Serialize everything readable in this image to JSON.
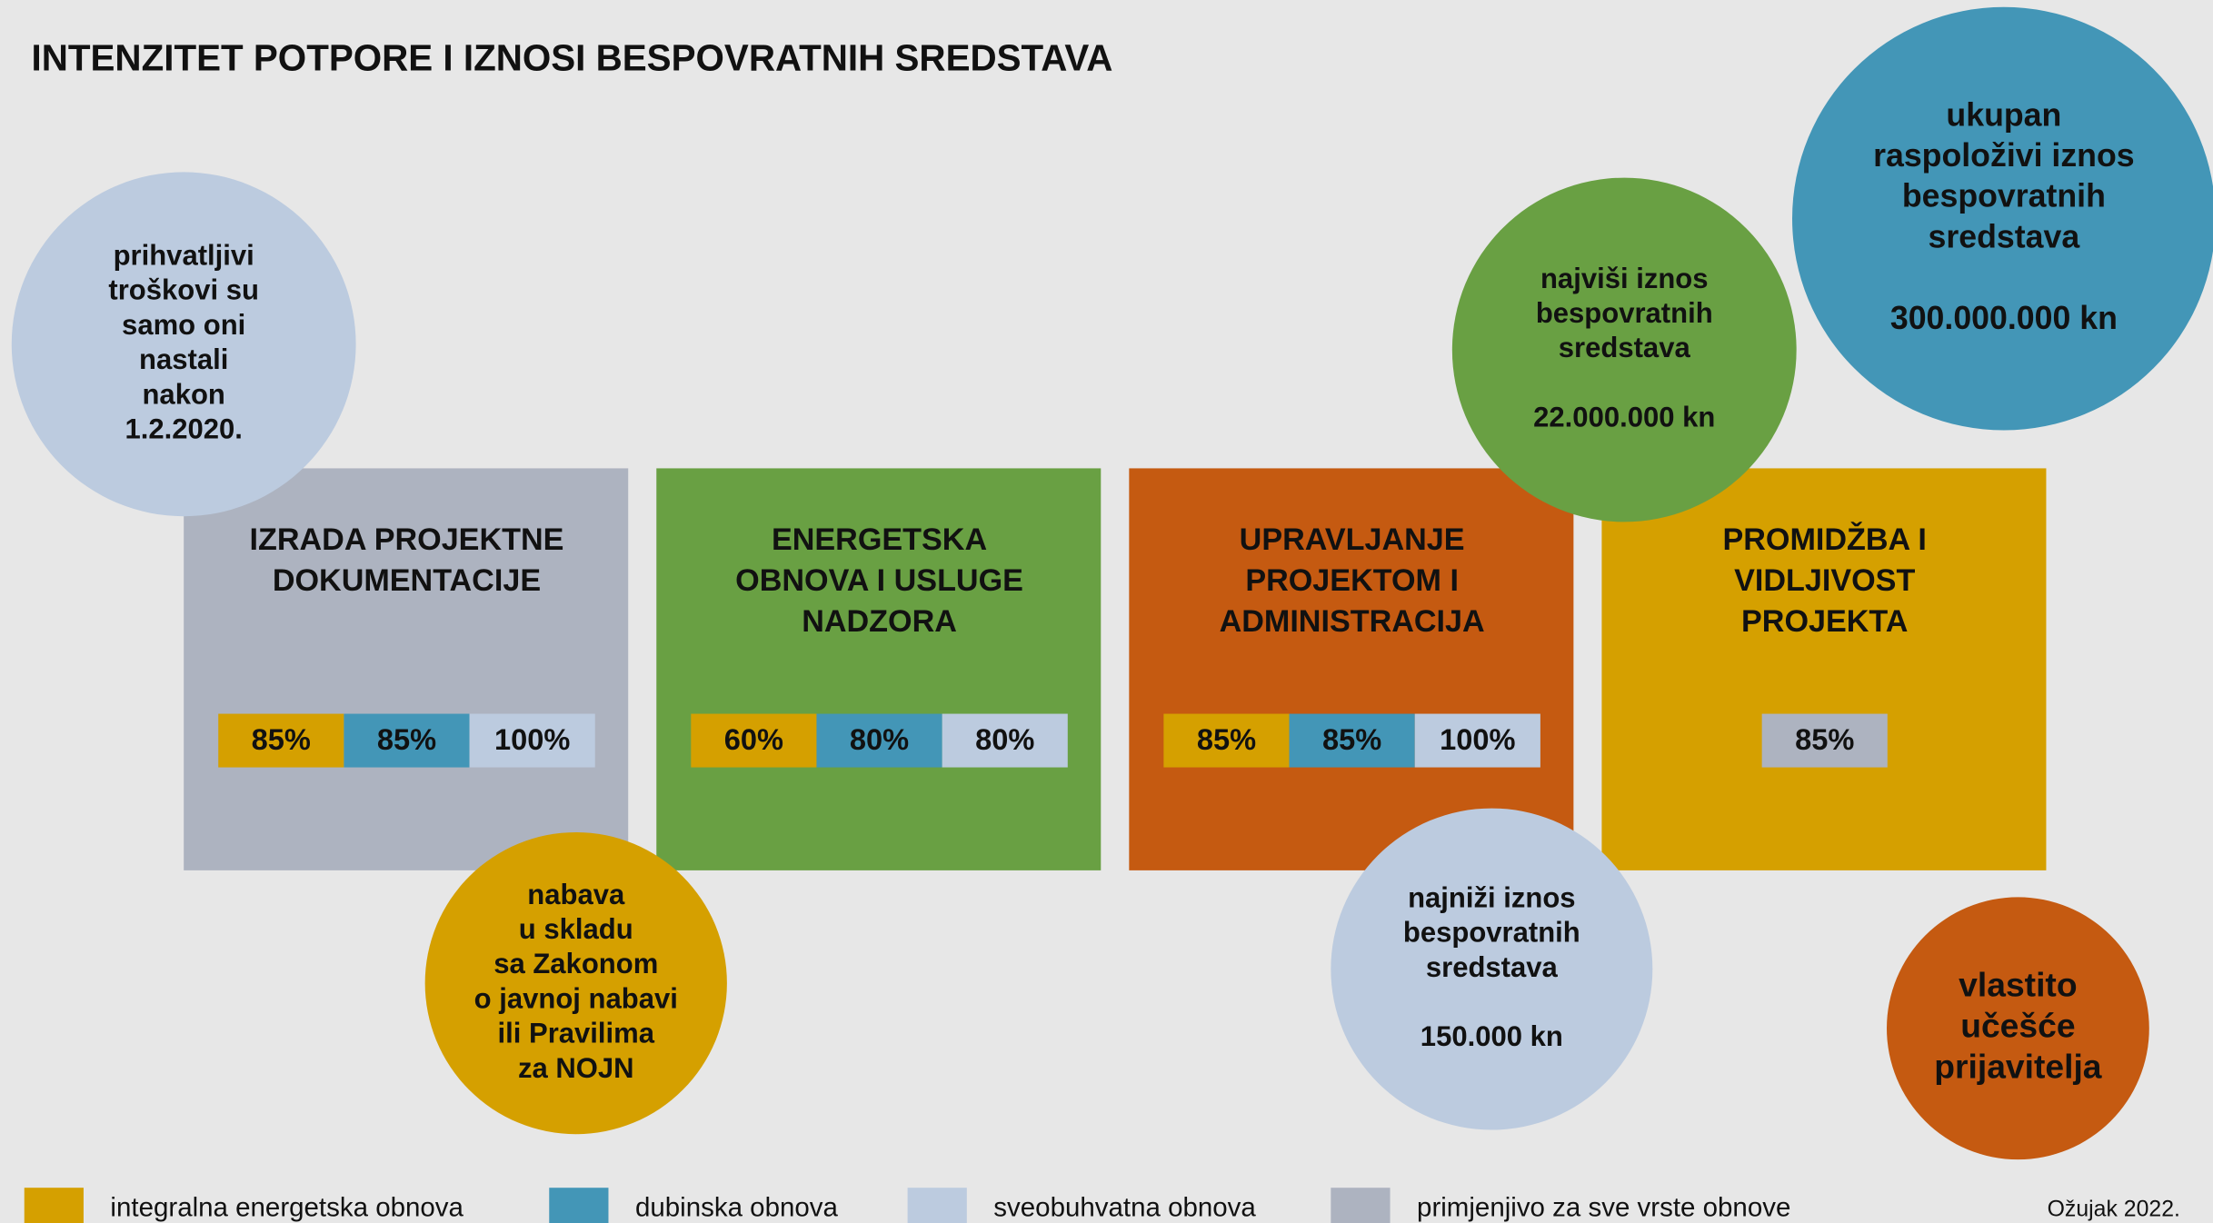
{
  "title": "INTENZITET POTPORE I IZNOSI BESPOVRATNIH SREDSTAVA",
  "boxes": [
    {
      "color": "#adb3c0",
      "x": 0,
      "title": [
        "IZRADA PROJEKTNE",
        "DOKUMENTACIJE"
      ],
      "cells": [
        {
          "label": "85%",
          "color": "#d5a000"
        },
        {
          "label": "85%",
          "color": "#4396b7"
        },
        {
          "label": "100%",
          "color": "#bccbdf"
        }
      ]
    },
    {
      "color": "#69a043",
      "title": [
        "ENERGETSKA",
        "OBNOVA I USLUGE",
        "NADZORA"
      ],
      "cells": [
        {
          "label": "60%",
          "color": "#d5a000"
        },
        {
          "label": "80%",
          "color": "#4396b7"
        },
        {
          "label": "80%",
          "color": "#bccbdf"
        }
      ]
    },
    {
      "color": "#c55a11",
      "title": [
        "UPRAVLJANJE",
        "PROJEKTOM I",
        "ADMINISTRACIJA"
      ],
      "cells": [
        {
          "label": "85%",
          "color": "#d5a000"
        },
        {
          "label": "85%",
          "color": "#4396b7"
        },
        {
          "label": "100%",
          "color": "#bccbdf"
        }
      ]
    },
    {
      "color": "#d5a000",
      "title": [
        "PROMIDŽBA I",
        "VIDLJIVOST",
        "PROJEKTA"
      ],
      "cells": [
        {
          "label": "85%",
          "color": "#adb3c0"
        }
      ]
    }
  ],
  "circles": [
    {
      "color": "#bccbdf",
      "lines": [
        "prihvatljivi",
        "troškovi su",
        "samo oni",
        "nastali",
        "nakon",
        "1.2.2020."
      ]
    },
    {
      "color": "#d5a000",
      "lines": [
        "nabava",
        "u skladu",
        "sa Zakonom",
        "o javnoj nabavi",
        "ili Pravilima",
        "za NOJN"
      ]
    },
    {
      "color": "#69a043",
      "lines": [
        "najviši iznos",
        "bespovratnih",
        "sredstava"
      ],
      "amount": "22.000.000 kn"
    },
    {
      "color": "#4396b7",
      "lines": [
        "ukupan",
        "raspoloživi iznos",
        "bespovratnih",
        "sredstava"
      ],
      "amount": "300.000.000 kn"
    },
    {
      "color": "#bccbdf",
      "lines": [
        "najniži iznos",
        "bespovratnih",
        "sredstava"
      ],
      "amount": "150.000 kn"
    },
    {
      "color": "#c55a11",
      "lines": [
        "vlastito",
        "učešće",
        "prijavitelja"
      ]
    }
  ],
  "legend": [
    {
      "label": "integralna energetska obnova",
      "color": "#d5a000"
    },
    {
      "label": "dubinska obnova",
      "color": "#4396b7"
    },
    {
      "label": "sveobuhvatna obnova",
      "color": "#bccbdf"
    },
    {
      "label": "primjenjivo za sve vrste obnove",
      "color": "#adb3c0"
    }
  ],
  "date": "Ožujak 2022."
}
